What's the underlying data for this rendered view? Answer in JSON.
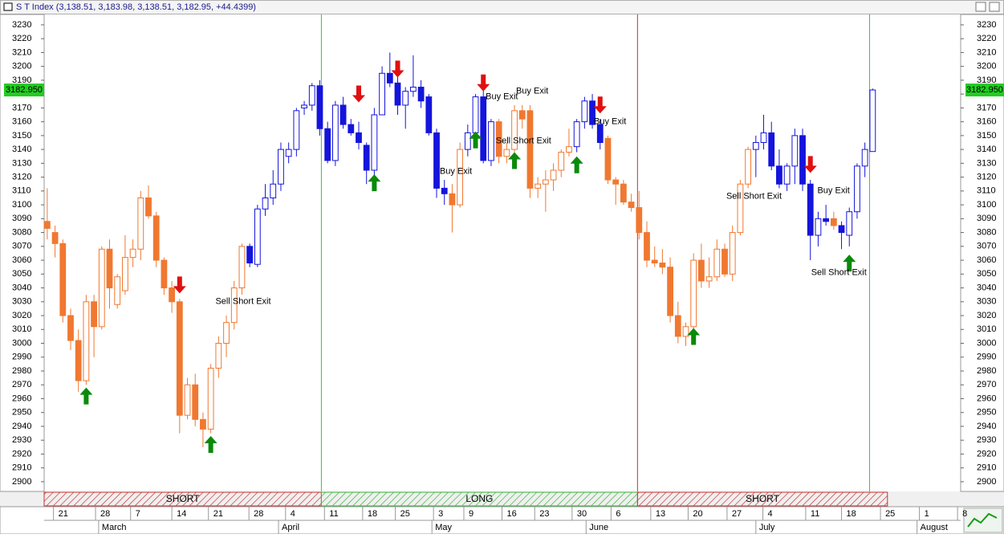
{
  "chart_data": {
    "type": "candlestick",
    "title": "S T Index (3,138.51, 3,183.98, 3,138.51, 3,182.95, +44.4399)",
    "open": [
      3088,
      3080,
      3072,
      3020,
      3002,
      2973,
      3030,
      3012,
      3068,
      3028,
      3038,
      3062,
      3068,
      3105,
      3092,
      3060,
      3040,
      3030,
      2948,
      2970,
      2945,
      2938,
      2982,
      3000,
      3015,
      3040,
      3070,
      3057,
      3097,
      3105,
      3115,
      3135,
      3140,
      3170,
      3172,
      3186,
      3155,
      3132,
      3172,
      3158,
      3152,
      3143,
      3125,
      3165,
      3195,
      3188,
      3172,
      3182,
      3185,
      3178,
      3152,
      3112,
      3108,
      3100,
      3140,
      3152,
      3178,
      3132,
      3160,
      3135,
      3140,
      3168,
      3168,
      3112,
      3115,
      3118,
      3125,
      3138,
      3142,
      3160,
      3175,
      3158,
      3148,
      3118,
      3115,
      3102,
      3098,
      3080,
      3060,
      3058,
      3055,
      3020,
      3005,
      3012,
      3060,
      3045,
      3048,
      3068,
      3050,
      3080,
      3115,
      3140,
      3145,
      3152,
      3128,
      3115,
      3128,
      3150,
      3115,
      3078,
      3090,
      3090,
      3085,
      3078,
      3095,
      3128,
      3138.51
    ],
    "high": [
      3112,
      3085,
      3075,
      3025,
      3010,
      3035,
      3035,
      3070,
      3075,
      3050,
      3078,
      3075,
      3110,
      3114,
      3095,
      3062,
      3045,
      3032,
      2975,
      2978,
      2950,
      2985,
      3005,
      3020,
      3045,
      3072,
      3072,
      3100,
      3115,
      3125,
      3145,
      3145,
      3170,
      3175,
      3188,
      3190,
      3160,
      3175,
      3178,
      3162,
      3160,
      3145,
      3170,
      3200,
      3210,
      3195,
      3185,
      3208,
      3190,
      3180,
      3155,
      3118,
      3115,
      3145,
      3158,
      3180,
      3185,
      3162,
      3162,
      3145,
      3172,
      3172,
      3172,
      3120,
      3125,
      3130,
      3140,
      3155,
      3162,
      3178,
      3180,
      3162,
      3150,
      3120,
      3118,
      3108,
      3110,
      3088,
      3070,
      3068,
      3062,
      3030,
      3015,
      3065,
      3072,
      3062,
      3075,
      3072,
      3085,
      3118,
      3142,
      3150,
      3165,
      3160,
      3140,
      3130,
      3155,
      3155,
      3118,
      3095,
      3100,
      3095,
      3088,
      3098,
      3130,
      3145,
      3183.98
    ],
    "low": [
      3075,
      3062,
      3015,
      2995,
      2965,
      2970,
      2990,
      3010,
      3025,
      3025,
      3035,
      3055,
      3060,
      3090,
      3055,
      3035,
      3022,
      2935,
      2945,
      2940,
      2925,
      2935,
      2975,
      2990,
      3010,
      3035,
      3055,
      3055,
      3092,
      3100,
      3110,
      3130,
      3135,
      3165,
      3168,
      3150,
      3130,
      3128,
      3155,
      3150,
      3140,
      3115,
      3120,
      3165,
      3185,
      3165,
      3155,
      3178,
      3170,
      3150,
      3105,
      3100,
      3080,
      3098,
      3135,
      3150,
      3130,
      3128,
      3130,
      3130,
      3138,
      3155,
      3105,
      3105,
      3095,
      3110,
      3120,
      3135,
      3138,
      3155,
      3155,
      3140,
      3115,
      3100,
      3100,
      3095,
      3075,
      3055,
      3055,
      3050,
      3015,
      3000,
      2998,
      3008,
      3040,
      3040,
      3045,
      3048,
      3045,
      3078,
      3112,
      3120,
      3140,
      3125,
      3112,
      3110,
      3115,
      3110,
      3060,
      3070,
      3085,
      3082,
      3068,
      3070,
      3090,
      3120,
      3138.51
    ],
    "close": [
      3083,
      3072,
      3020,
      3002,
      2973,
      3030,
      3012,
      3068,
      3040,
      3048,
      3062,
      3068,
      3105,
      3092,
      3060,
      3040,
      3030,
      2948,
      2970,
      2945,
      2938,
      2982,
      3000,
      3015,
      3040,
      3070,
      3058,
      3097,
      3105,
      3115,
      3140,
      3140,
      3168,
      3172,
      3186,
      3155,
      3132,
      3172,
      3158,
      3152,
      3145,
      3125,
      3165,
      3195,
      3188,
      3172,
      3182,
      3185,
      3175,
      3152,
      3112,
      3108,
      3100,
      3140,
      3152,
      3178,
      3132,
      3160,
      3135,
      3140,
      3168,
      3162,
      3112,
      3115,
      3118,
      3125,
      3138,
      3142,
      3160,
      3175,
      3158,
      3145,
      3118,
      3115,
      3102,
      3098,
      3080,
      3060,
      3058,
      3055,
      3020,
      3005,
      3012,
      3060,
      3045,
      3048,
      3068,
      3050,
      3080,
      3115,
      3140,
      3145,
      3152,
      3128,
      3115,
      3128,
      3150,
      3115,
      3078,
      3090,
      3088,
      3085,
      3080,
      3095,
      3128,
      3140,
      3182.95
    ],
    "colors": [
      "#f07830",
      "#f07830",
      "#f07830",
      "#f07830",
      "#f07830",
      "#f07830",
      "#f07830",
      "#f07830",
      "#f07830",
      "#f07830",
      "#f07830",
      "#f07830",
      "#f07830",
      "#f07830",
      "#f07830",
      "#f07830",
      "#f07830",
      "#f07830",
      "#f07830",
      "#f07830",
      "#f07830",
      "#f07830",
      "#f07830",
      "#f07830",
      "#f07830",
      "#f07830",
      "#1414dc",
      "#1414dc",
      "#1414dc",
      "#1414dc",
      "#1414dc",
      "#1414dc",
      "#1414dc",
      "#1414dc",
      "#1414dc",
      "#1414dc",
      "#1414dc",
      "#1414dc",
      "#1414dc",
      "#1414dc",
      "#1414dc",
      "#1414dc",
      "#1414dc",
      "#1414dc",
      "#1414dc",
      "#1414dc",
      "#1414dc",
      "#1414dc",
      "#1414dc",
      "#1414dc",
      "#1414dc",
      "#1414dc",
      "#f07830",
      "#f07830",
      "#1414dc",
      "#1414dc",
      "#1414dc",
      "#1414dc",
      "#f07830",
      "#f07830",
      "#f07830",
      "#f07830",
      "#f07830",
      "#f07830",
      "#f07830",
      "#f07830",
      "#f07830",
      "#f07830",
      "#1414dc",
      "#1414dc",
      "#1414dc",
      "#1414dc",
      "#f07830",
      "#f07830",
      "#f07830",
      "#f07830",
      "#f07830",
      "#f07830",
      "#f07830",
      "#f07830",
      "#f07830",
      "#f07830",
      "#f07830",
      "#f07830",
      "#f07830",
      "#f07830",
      "#f07830",
      "#f07830",
      "#f07830",
      "#f07830",
      "#f07830",
      "#1414dc",
      "#1414dc",
      "#1414dc",
      "#1414dc",
      "#1414dc",
      "#1414dc",
      "#1414dc",
      "#1414dc",
      "#1414dc",
      "#1414dc",
      "#f07830",
      "#1414dc",
      "#1414dc",
      "#1414dc",
      "#1414dc",
      "#1414dc"
    ],
    "xlim": [
      -0.4,
      117.3
    ],
    "ylim": [
      2893,
      3237.5
    ],
    "yticks": [
      2900,
      2910,
      2920,
      2930,
      2940,
      2950,
      2960,
      2970,
      2980,
      2990,
      3000,
      3010,
      3020,
      3030,
      3040,
      3050,
      3060,
      3070,
      3080,
      3090,
      3100,
      3110,
      3120,
      3130,
      3140,
      3150,
      3160,
      3170,
      3180,
      3190,
      3200,
      3210,
      3220,
      3230
    ],
    "day_ticks": [
      {
        "value": 0.8,
        "label": "21"
      },
      {
        "value": 6.2,
        "label": "28"
      },
      {
        "value": 10.7,
        "label": "7"
      },
      {
        "value": 16.0,
        "label": "14"
      },
      {
        "value": 20.7,
        "label": "21"
      },
      {
        "value": 25.9,
        "label": "28"
      },
      {
        "value": 30.6,
        "label": "4"
      },
      {
        "value": 35.6,
        "label": "11"
      },
      {
        "value": 40.5,
        "label": "18"
      },
      {
        "value": 44.7,
        "label": "25"
      },
      {
        "value": 49.6,
        "label": "3"
      },
      {
        "value": 53.5,
        "label": "9"
      },
      {
        "value": 58.4,
        "label": "16"
      },
      {
        "value": 62.6,
        "label": "23"
      },
      {
        "value": 67.4,
        "label": "30"
      },
      {
        "value": 72.4,
        "label": "6"
      },
      {
        "value": 77.5,
        "label": "13"
      },
      {
        "value": 82.3,
        "label": "20"
      },
      {
        "value": 87.3,
        "label": "27"
      },
      {
        "value": 91.9,
        "label": "4"
      },
      {
        "value": 97.4,
        "label": "11"
      },
      {
        "value": 102.0,
        "label": "18"
      },
      {
        "value": 107.0,
        "label": "25"
      },
      {
        "value": 112.0,
        "label": "1"
      },
      {
        "value": 116.9,
        "label": "8"
      }
    ],
    "month_ticks": [
      {
        "value": 6.6,
        "label": "March"
      },
      {
        "value": 29.7,
        "label": "April"
      },
      {
        "value": 49.4,
        "label": "May"
      },
      {
        "value": 69.2,
        "label": "June"
      },
      {
        "value": 91.0,
        "label": "July"
      },
      {
        "value": 111.7,
        "label": "August"
      }
    ],
    "last_price": {
      "value": 3182.95,
      "label": "3182.950"
    },
    "regions": [
      {
        "label": "SHORT",
        "start": -0.4,
        "end": 35.2,
        "color": "#c83232"
      },
      {
        "label": "LONG",
        "start": 35.2,
        "end": 75.8,
        "color": "#3cb43c"
      },
      {
        "label": "SHORT",
        "start": 75.8,
        "end": 107.9,
        "color": "#c83232"
      }
    ],
    "vlines": [
      {
        "at": 35.2,
        "color": "#40c040"
      },
      {
        "at": 75.8,
        "color": "#c03030"
      },
      {
        "at": 105.6,
        "color": "#40c040"
      }
    ],
    "signals": [
      {
        "type": "up",
        "index": 5,
        "value": 2968
      },
      {
        "type": "up",
        "index": 21,
        "value": 2933
      },
      {
        "type": "up",
        "index": 42,
        "value": 3122
      },
      {
        "type": "up",
        "index": 55,
        "value": 3153
      },
      {
        "type": "up",
        "index": 60,
        "value": 3138
      },
      {
        "type": "up",
        "index": 68,
        "value": 3135
      },
      {
        "type": "up",
        "index": 83,
        "value": 3011
      },
      {
        "type": "up",
        "index": 103,
        "value": 3064
      },
      {
        "type": "down",
        "index": 17,
        "value": 3036
      },
      {
        "type": "down",
        "index": 40,
        "value": 3174
      },
      {
        "type": "down",
        "index": 45,
        "value": 3192
      },
      {
        "type": "down",
        "index": 56,
        "value": 3182
      },
      {
        "type": "down",
        "index": 71,
        "value": 3166
      },
      {
        "type": "down",
        "index": 98,
        "value": 3123
      }
    ],
    "annotations": [
      {
        "text": "Sell Short Exit",
        "index": 21.6,
        "value": 3030
      },
      {
        "text": "Buy Exit",
        "index": 50.4,
        "value": 3124
      },
      {
        "text": "Buy Exit",
        "index": 56.3,
        "value": 3178
      },
      {
        "text": "Buy Exit",
        "index": 60.2,
        "value": 3182
      },
      {
        "text": "Sell Short Exit",
        "index": 57.6,
        "value": 3146
      },
      {
        "text": "Buy Exit",
        "index": 70.2,
        "value": 3160
      },
      {
        "text": "Sell Short Exit",
        "index": 87.2,
        "value": 3106
      },
      {
        "text": "Buy Exit",
        "index": 98.9,
        "value": 3110
      },
      {
        "text": "Sell Short Exit",
        "index": 98.1,
        "value": 3051
      }
    ]
  }
}
